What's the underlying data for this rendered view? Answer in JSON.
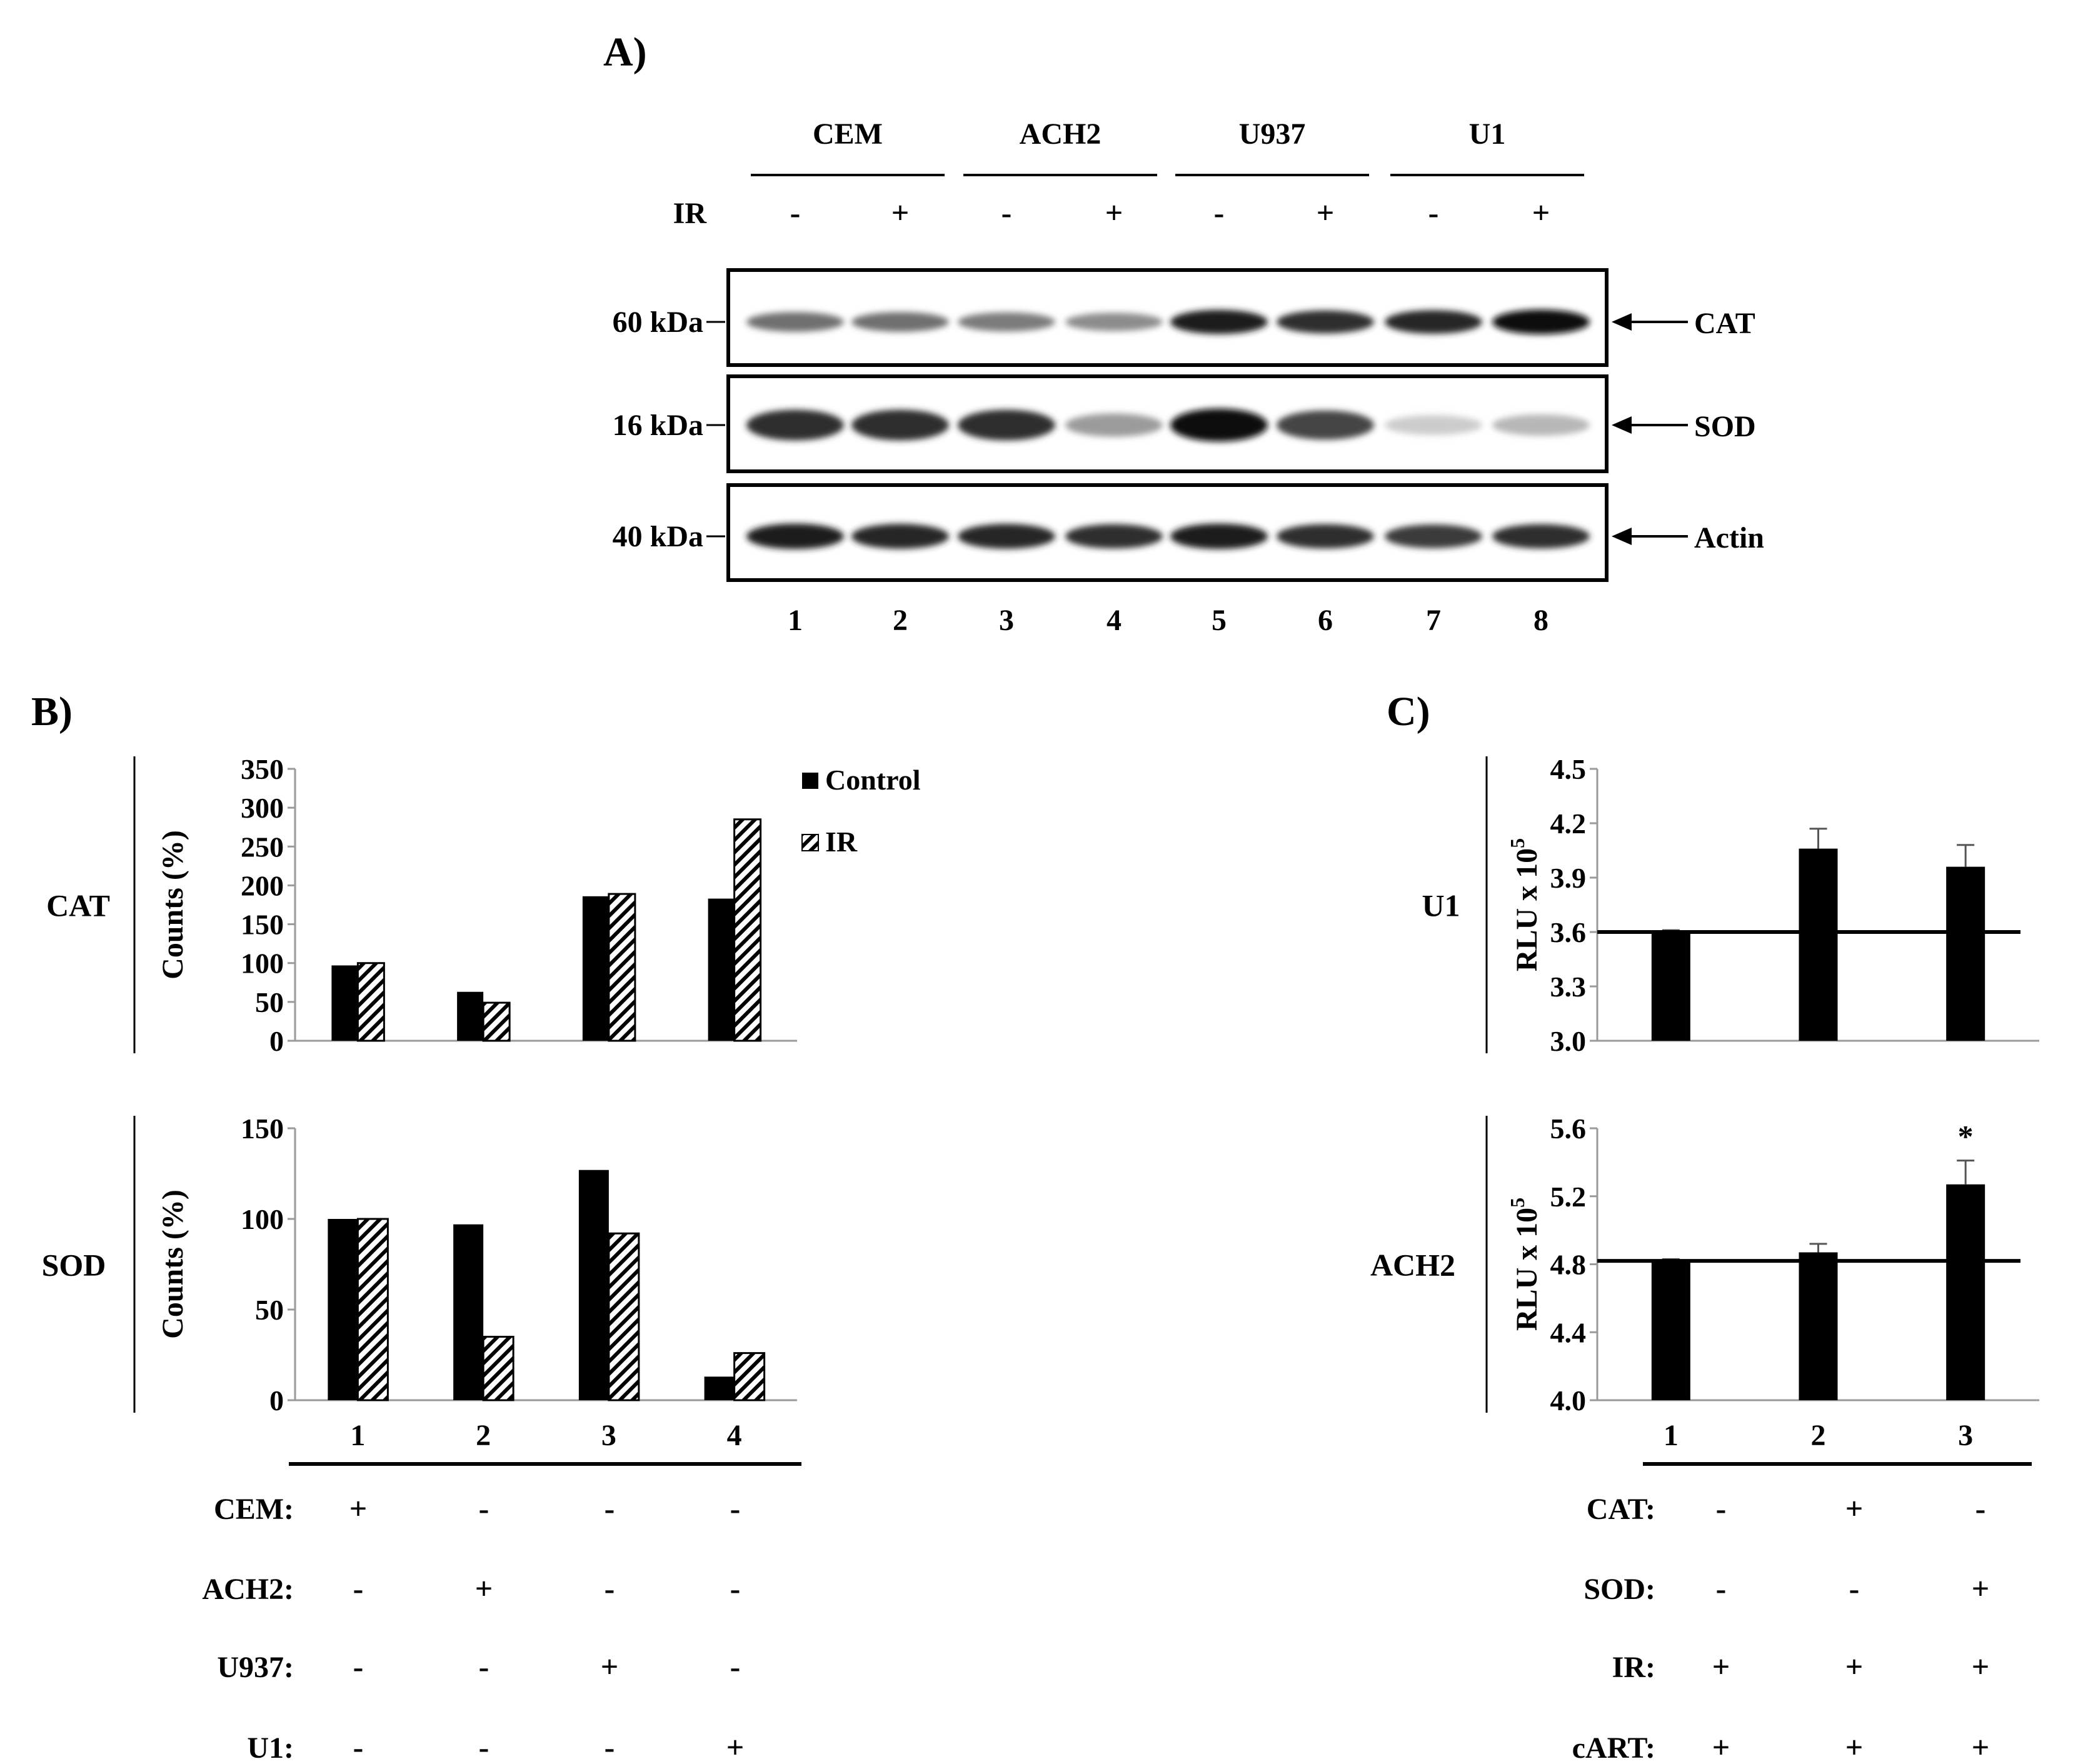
{
  "panel_a": {
    "label": "A)",
    "groups": [
      "CEM",
      "ACH2",
      "U937",
      "U1"
    ],
    "ir_label": "IR",
    "ir_signs": [
      "-",
      "+",
      "-",
      "+",
      "-",
      "+",
      "-",
      "+"
    ],
    "markers": [
      "60 kDa",
      "16 kDa",
      "40 kDa"
    ],
    "proteins": [
      "CAT",
      "SOD",
      "Actin"
    ],
    "lanes": [
      "1",
      "2",
      "3",
      "4",
      "5",
      "6",
      "7",
      "8"
    ],
    "band_intensity": {
      "CAT": [
        0.55,
        0.55,
        0.5,
        0.42,
        0.95,
        0.85,
        0.9,
        1.0
      ],
      "SOD": [
        0.85,
        0.85,
        0.85,
        0.35,
        1.0,
        0.75,
        0.12,
        0.22
      ],
      "Actin": [
        0.95,
        0.9,
        0.9,
        0.85,
        0.95,
        0.85,
        0.8,
        0.85
      ]
    }
  },
  "panel_b": {
    "label": "B)",
    "legend": [
      "Control",
      "IR"
    ],
    "categories": [
      "1",
      "2",
      "3",
      "4"
    ],
    "conditions": [
      {
        "label": "CEM:",
        "signs": [
          "+",
          "-",
          "-",
          "-"
        ]
      },
      {
        "label": "ACH2:",
        "signs": [
          "-",
          "+",
          "-",
          "-"
        ]
      },
      {
        "label": "U937:",
        "signs": [
          "-",
          "-",
          "+",
          "-"
        ]
      },
      {
        "label": "U1:",
        "signs": [
          "-",
          "-",
          "-",
          "+"
        ]
      }
    ]
  },
  "panel_c": {
    "label": "C)",
    "categories": [
      "1",
      "2",
      "3"
    ],
    "conditions": [
      {
        "label": "CAT:",
        "signs": [
          "-",
          "+",
          "-"
        ]
      },
      {
        "label": "SOD:",
        "signs": [
          "-",
          "-",
          "+"
        ]
      },
      {
        "label": "IR:",
        "signs": [
          "+",
          "+",
          "+"
        ]
      },
      {
        "label": "cART:",
        "signs": [
          "+",
          "+",
          "+"
        ]
      }
    ]
  },
  "chart_data": [
    {
      "type": "bar",
      "row_label": "CAT",
      "ylabel": "Counts  (%)",
      "categories": [
        "1",
        "2",
        "3",
        "4"
      ],
      "series": [
        {
          "name": "Control",
          "values": [
            97,
            63,
            186,
            183
          ]
        },
        {
          "name": "IR",
          "values": [
            100,
            49,
            189,
            285
          ]
        }
      ],
      "ylim": [
        0,
        350
      ],
      "yticks": [
        0,
        50,
        100,
        150,
        200,
        250,
        300,
        350
      ],
      "legend": "top-right"
    },
    {
      "type": "bar",
      "row_label": "SOD",
      "ylabel": "Counts  (%)",
      "categories": [
        "1",
        "2",
        "3",
        "4"
      ],
      "series": [
        {
          "name": "Control",
          "values": [
            100,
            97,
            127,
            13
          ]
        },
        {
          "name": "IR",
          "values": [
            100,
            35,
            92,
            26
          ]
        }
      ],
      "ylim": [
        0,
        150
      ],
      "yticks": [
        0,
        50,
        100,
        150
      ]
    },
    {
      "type": "bar",
      "row_label": "U1",
      "ylabel": "RLU x 10",
      "ylabel_sup": "5",
      "categories": [
        "1",
        "2",
        "3"
      ],
      "values": [
        3.6,
        4.06,
        3.96
      ],
      "errors": [
        0.01,
        0.11,
        0.12
      ],
      "baseline": 3.6,
      "ylim": [
        3.0,
        4.5
      ],
      "yticks": [
        3.0,
        3.3,
        3.6,
        3.9,
        4.2,
        4.5
      ],
      "tick_decimals": 1
    },
    {
      "type": "bar",
      "row_label": "ACH2",
      "ylabel": "RLU x 10",
      "ylabel_sup": "5",
      "categories": [
        "1",
        "2",
        "3"
      ],
      "values": [
        4.82,
        4.87,
        5.27
      ],
      "errors": [
        0.01,
        0.05,
        0.14
      ],
      "baseline": 4.82,
      "ylim": [
        4.0,
        5.6
      ],
      "yticks": [
        4.0,
        4.4,
        4.8,
        5.2,
        5.6
      ],
      "tick_decimals": 1,
      "annotations": [
        {
          "category": "3",
          "text": "*"
        }
      ]
    }
  ]
}
